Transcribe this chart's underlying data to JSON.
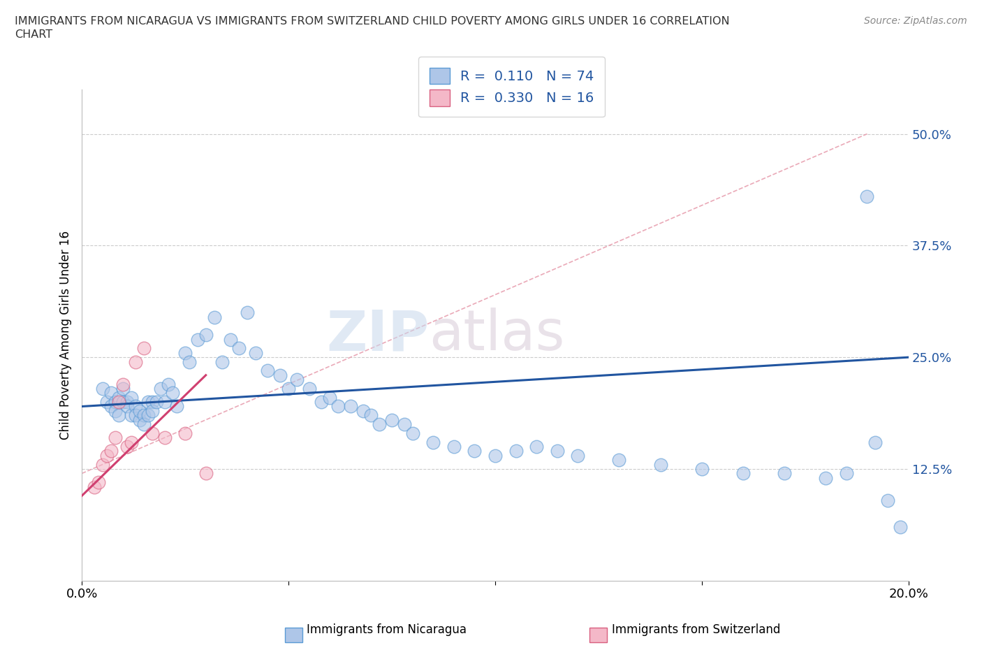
{
  "title_line1": "IMMIGRANTS FROM NICARAGUA VS IMMIGRANTS FROM SWITZERLAND CHILD POVERTY AMONG GIRLS UNDER 16 CORRELATION",
  "title_line2": "CHART",
  "source": "Source: ZipAtlas.com",
  "ylabel": "Child Poverty Among Girls Under 16",
  "xlim": [
    0.0,
    0.2
  ],
  "ylim": [
    0.0,
    0.55
  ],
  "yticks": [
    0.0,
    0.125,
    0.25,
    0.375,
    0.5
  ],
  "ytick_labels": [
    "",
    "12.5%",
    "25.0%",
    "37.5%",
    "50.0%"
  ],
  "xtick_labels_left": "0.0%",
  "xtick_labels_right": "20.0%",
  "nicaragua_color": "#aec6e8",
  "switzerland_color": "#f4b8c8",
  "nicaragua_edge": "#5b9bd5",
  "switzerland_edge": "#d96080",
  "trendline_nicaragua_color": "#2155a0",
  "trendline_switzerland_color": "#d04070",
  "trendline_ref_color": "#e8a0b0",
  "R_nicaragua": 0.11,
  "N_nicaragua": 74,
  "R_switzerland": 0.33,
  "N_switzerland": 16,
  "watermark_zip": "ZIP",
  "watermark_atlas": "atlas",
  "nicaragua_x": [
    0.005,
    0.006,
    0.007,
    0.007,
    0.008,
    0.008,
    0.009,
    0.009,
    0.01,
    0.01,
    0.011,
    0.011,
    0.012,
    0.012,
    0.013,
    0.013,
    0.014,
    0.014,
    0.015,
    0.015,
    0.016,
    0.016,
    0.017,
    0.017,
    0.018,
    0.019,
    0.02,
    0.021,
    0.022,
    0.023,
    0.025,
    0.026,
    0.028,
    0.03,
    0.032,
    0.034,
    0.036,
    0.038,
    0.04,
    0.042,
    0.045,
    0.048,
    0.05,
    0.052,
    0.055,
    0.058,
    0.06,
    0.062,
    0.065,
    0.068,
    0.07,
    0.072,
    0.075,
    0.078,
    0.08,
    0.085,
    0.09,
    0.095,
    0.1,
    0.105,
    0.11,
    0.115,
    0.12,
    0.13,
    0.14,
    0.15,
    0.16,
    0.17,
    0.18,
    0.185,
    0.19,
    0.192,
    0.195,
    0.198
  ],
  "nicaragua_y": [
    0.215,
    0.2,
    0.21,
    0.195,
    0.2,
    0.19,
    0.205,
    0.185,
    0.215,
    0.2,
    0.2,
    0.195,
    0.205,
    0.185,
    0.195,
    0.185,
    0.18,
    0.19,
    0.185,
    0.175,
    0.2,
    0.185,
    0.2,
    0.19,
    0.2,
    0.215,
    0.2,
    0.22,
    0.21,
    0.195,
    0.255,
    0.245,
    0.27,
    0.275,
    0.295,
    0.245,
    0.27,
    0.26,
    0.3,
    0.255,
    0.235,
    0.23,
    0.215,
    0.225,
    0.215,
    0.2,
    0.205,
    0.195,
    0.195,
    0.19,
    0.185,
    0.175,
    0.18,
    0.175,
    0.165,
    0.155,
    0.15,
    0.145,
    0.14,
    0.145,
    0.15,
    0.145,
    0.14,
    0.135,
    0.13,
    0.125,
    0.12,
    0.12,
    0.115,
    0.12,
    0.43,
    0.155,
    0.09,
    0.06
  ],
  "switzerland_x": [
    0.003,
    0.004,
    0.005,
    0.006,
    0.007,
    0.008,
    0.009,
    0.01,
    0.011,
    0.012,
    0.013,
    0.015,
    0.017,
    0.02,
    0.025,
    0.03
  ],
  "switzerland_y": [
    0.105,
    0.11,
    0.13,
    0.14,
    0.145,
    0.16,
    0.2,
    0.22,
    0.15,
    0.155,
    0.245,
    0.26,
    0.165,
    0.16,
    0.165,
    0.12
  ]
}
